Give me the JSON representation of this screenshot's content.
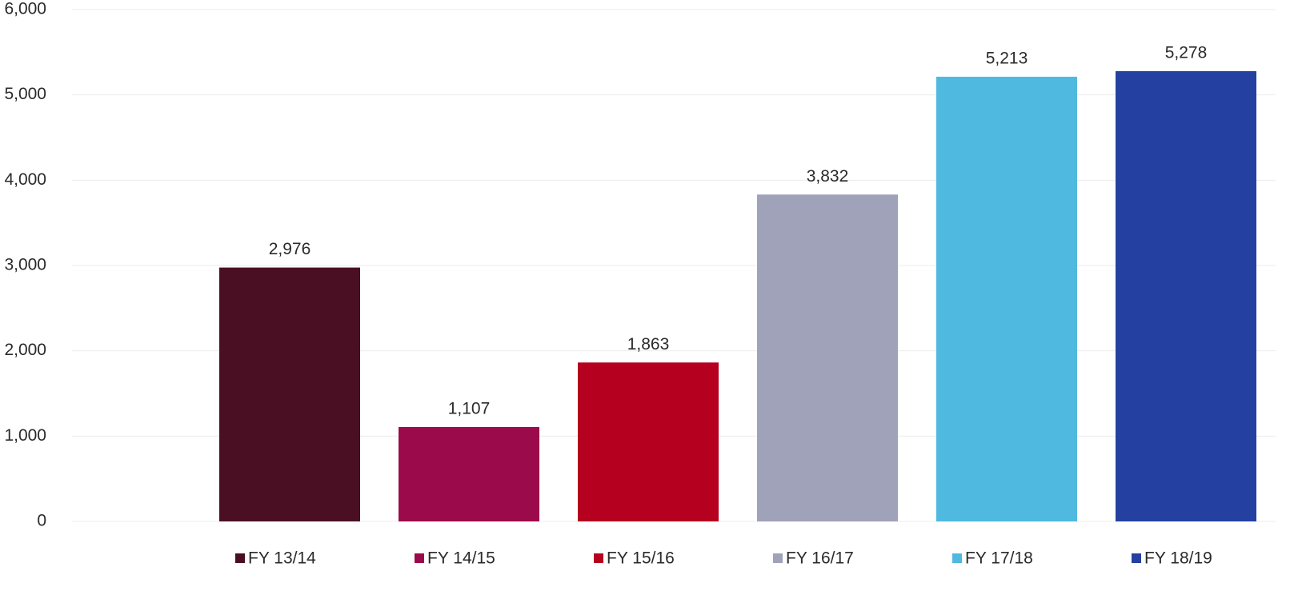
{
  "chart_data": {
    "type": "bar",
    "categories": [
      "FY 13/14",
      "FY 14/15",
      "FY 15/16",
      "FY 16/17",
      "FY 17/18",
      "FY 18/19"
    ],
    "values": [
      2976,
      1107,
      1863,
      3832,
      5213,
      5278
    ],
    "value_labels": [
      "2,976",
      "1,107",
      "1,863",
      "3,832",
      "5,213",
      "5,278"
    ],
    "colors": [
      "#4a0f22",
      "#9b0a4a",
      "#b5001f",
      "#9fa2b8",
      "#4fb9e0",
      "#2440a0"
    ],
    "ylim": [
      0,
      6000
    ],
    "yticks": [
      0,
      {
        "value": 1000,
        "label": "1,000"
      },
      {
        "value": 2000,
        "label": "2,000"
      },
      {
        "value": 3000,
        "label": "3,000"
      },
      {
        "value": 4000,
        "label": "4,000"
      },
      {
        "value": 5000,
        "label": "5,000"
      },
      {
        "value": 6000,
        "label": "6,000"
      }
    ],
    "grid": true
  }
}
